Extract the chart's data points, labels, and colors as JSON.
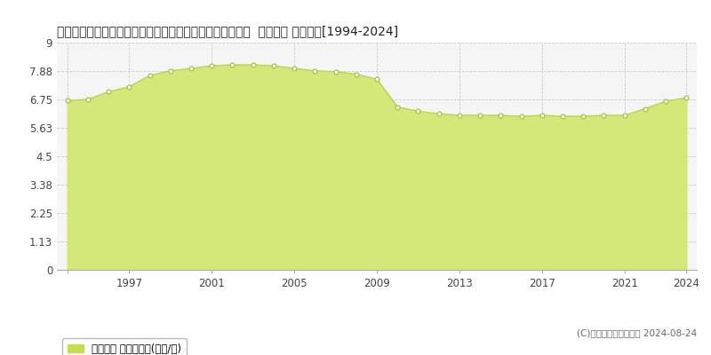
{
  "title": "北海道上川郡東神楽町ひじり野北１条１丁目９５番１００  地価公示 地価推移[1994-2024]",
  "years": [
    1994,
    1995,
    1996,
    1997,
    1998,
    1999,
    2000,
    2001,
    2002,
    2003,
    2004,
    2005,
    2006,
    2007,
    2008,
    2009,
    2010,
    2011,
    2012,
    2013,
    2014,
    2015,
    2016,
    2017,
    2018,
    2019,
    2020,
    2021,
    2022,
    2023,
    2024
  ],
  "values": [
    6.7,
    6.75,
    7.05,
    7.25,
    7.7,
    7.88,
    7.98,
    8.08,
    8.12,
    8.12,
    8.08,
    7.98,
    7.88,
    7.85,
    7.75,
    7.55,
    6.45,
    6.28,
    6.18,
    6.12,
    6.12,
    6.12,
    6.08,
    6.12,
    6.08,
    6.08,
    6.12,
    6.12,
    6.38,
    6.68,
    6.82
  ],
  "fill_color": "#d4e87a",
  "line_color": "#bbd450",
  "marker_facecolor": "#ffffff",
  "marker_edgecolor": "#aac040",
  "yticks": [
    0,
    1.13,
    2.25,
    3.38,
    4.5,
    5.63,
    6.75,
    7.88,
    9
  ],
  "ytick_labels": [
    "0",
    "1.13",
    "2.25",
    "3.38",
    "4.5",
    "5.63",
    "6.75",
    "7.88",
    "9"
  ],
  "xticks": [
    1994,
    1997,
    2001,
    2005,
    2009,
    2013,
    2017,
    2021,
    2024
  ],
  "xtick_labels": [
    "",
    "1997",
    "2001",
    "2005",
    "2009",
    "2013",
    "2017",
    "2021",
    "2024"
  ],
  "ylim": [
    0,
    9
  ],
  "xlim_min": 1993.5,
  "xlim_max": 2024.5,
  "grid_color": "#cccccc",
  "bg_color": "#ffffff",
  "plot_bg_color": "#f5f5f5",
  "legend_label": "地価公示 平均坪単価(万円/坪)",
  "legend_marker_color": "#c8dc50",
  "copyright_text": "(C)土地価格ドットコム 2024-08-24",
  "title_fontsize": 10,
  "tick_fontsize": 8.5,
  "legend_fontsize": 8.5,
  "copyright_fontsize": 7.5
}
